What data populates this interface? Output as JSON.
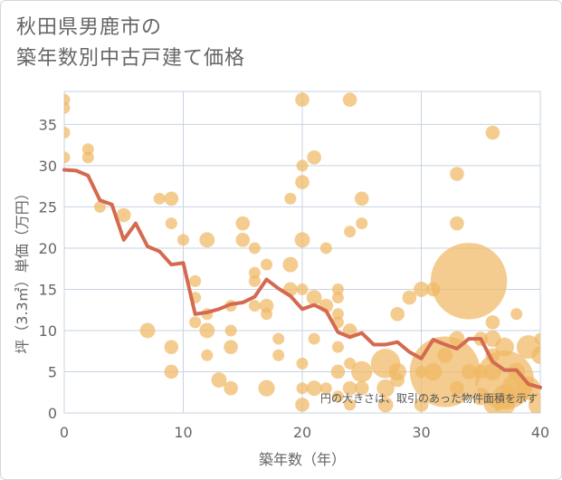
{
  "chart_data": {
    "type": "scatter",
    "title_lines": [
      "秋田県男鹿市の",
      "築年数別中古戸建て価格"
    ],
    "xlabel": "築年数（年）",
    "ylabel": "坪（3.3㎡）単価（万円）",
    "xlim": [
      0,
      40
    ],
    "ylim": [
      0,
      39
    ],
    "xticks": [
      0,
      10,
      20,
      30,
      40
    ],
    "yticks": [
      0,
      5,
      10,
      15,
      20,
      25,
      30,
      35
    ],
    "grid": true,
    "note": "円の大きさは、取引のあった物件面積を示す",
    "colors": {
      "bubble": "#f0b964",
      "line": "#d46a4f",
      "grid": "#c8d3e2",
      "plot_bg": "#ffffff"
    },
    "series": [
      {
        "type": "bubble",
        "points": [
          [
            0,
            38,
            1
          ],
          [
            0,
            37,
            1
          ],
          [
            0,
            34,
            1
          ],
          [
            0,
            31,
            1
          ],
          [
            2,
            32,
            1
          ],
          [
            2,
            31,
            1
          ],
          [
            3,
            25,
            1
          ],
          [
            5,
            24,
            1.2
          ],
          [
            7,
            10,
            1.3
          ],
          [
            8,
            26,
            1
          ],
          [
            9,
            26,
            1.2
          ],
          [
            9,
            23,
            1
          ],
          [
            9,
            8,
            1.2
          ],
          [
            9,
            5,
            1.2
          ],
          [
            10,
            21,
            1
          ],
          [
            11,
            16,
            1
          ],
          [
            11,
            14,
            1
          ],
          [
            11,
            11,
            1
          ],
          [
            12,
            21,
            1.3
          ],
          [
            12,
            12,
            1
          ],
          [
            12,
            10,
            1.3
          ],
          [
            12,
            7,
            1
          ],
          [
            13,
            4,
            1.3
          ],
          [
            14,
            13,
            1
          ],
          [
            14,
            10,
            1
          ],
          [
            14,
            8,
            1.2
          ],
          [
            14,
            3,
            1.2
          ],
          [
            15,
            23,
            1.2
          ],
          [
            15,
            21,
            1.2
          ],
          [
            16,
            20,
            1
          ],
          [
            16,
            17,
            1
          ],
          [
            16,
            16,
            1
          ],
          [
            16,
            13,
            1
          ],
          [
            17,
            18,
            1
          ],
          [
            17,
            13,
            1.2
          ],
          [
            17,
            12,
            1
          ],
          [
            17,
            3,
            1.4
          ],
          [
            18,
            9,
            1
          ],
          [
            18,
            7,
            1
          ],
          [
            19,
            26,
            1
          ],
          [
            19,
            18,
            1.3
          ],
          [
            19,
            15,
            1.2
          ],
          [
            20,
            38,
            1.2
          ],
          [
            20,
            30,
            1
          ],
          [
            20,
            28,
            1.2
          ],
          [
            20,
            21,
            1.3
          ],
          [
            20,
            15,
            1
          ],
          [
            20,
            6,
            1
          ],
          [
            20,
            3,
            1
          ],
          [
            20,
            1,
            1.2
          ],
          [
            21,
            31,
            1.2
          ],
          [
            21,
            14,
            1.3
          ],
          [
            21,
            9,
            1
          ],
          [
            21,
            3,
            1.3
          ],
          [
            22,
            20,
            1
          ],
          [
            22,
            13,
            1.2
          ],
          [
            22,
            3,
            1
          ],
          [
            23,
            15,
            1
          ],
          [
            23,
            14,
            1
          ],
          [
            23,
            12,
            1
          ],
          [
            23,
            11,
            1
          ],
          [
            23,
            8,
            1
          ],
          [
            23,
            5,
            1.2
          ],
          [
            23,
            2,
            1
          ],
          [
            24,
            38,
            1.2
          ],
          [
            24,
            22,
            1
          ],
          [
            24,
            10,
            1.2
          ],
          [
            24,
            6,
            1
          ],
          [
            24,
            3,
            1.2
          ],
          [
            24,
            1,
            1
          ],
          [
            25,
            26,
            1.2
          ],
          [
            25,
            23,
            1
          ],
          [
            25,
            5,
            1.8
          ],
          [
            25,
            3,
            1.2
          ],
          [
            27,
            6,
            2.5
          ],
          [
            27,
            3,
            1.5
          ],
          [
            27,
            1,
            1.3
          ],
          [
            28,
            12,
            1.2
          ],
          [
            28,
            5,
            1.5
          ],
          [
            28,
            4,
            1.2
          ],
          [
            29,
            14,
            1.2
          ],
          [
            30,
            15,
            1.3
          ],
          [
            30,
            5,
            1
          ],
          [
            30,
            1,
            1.2
          ],
          [
            31,
            15,
            1.2
          ],
          [
            31,
            5,
            1.5
          ],
          [
            32,
            7,
            1.3
          ],
          [
            32,
            5,
            6
          ],
          [
            33,
            29,
            1.2
          ],
          [
            33,
            23,
            1.2
          ],
          [
            33,
            9,
            1.3
          ],
          [
            33,
            3,
            1.2
          ],
          [
            34,
            16,
            6.5
          ],
          [
            34,
            5,
            1.3
          ],
          [
            35,
            9,
            1.2
          ],
          [
            35,
            5,
            1.2
          ],
          [
            35,
            2,
            1.5
          ],
          [
            36,
            34,
            1.2
          ],
          [
            36,
            11,
            1.2
          ],
          [
            36,
            9,
            1.4
          ],
          [
            36,
            7,
            1.2
          ],
          [
            36,
            5,
            1.5
          ],
          [
            36,
            1,
            1.5
          ],
          [
            37,
            8,
            1.6
          ],
          [
            37,
            4,
            5
          ],
          [
            37,
            2,
            2
          ],
          [
            37,
            1,
            1.8
          ],
          [
            38,
            12,
            1
          ],
          [
            38,
            5,
            1.5
          ],
          [
            38,
            3,
            2.5
          ],
          [
            39,
            8,
            2
          ],
          [
            39,
            3,
            2
          ],
          [
            40,
            9,
            1
          ],
          [
            40,
            7,
            1.5
          ],
          [
            40,
            1,
            2
          ]
        ]
      },
      {
        "type": "line",
        "x": [
          0,
          1,
          2,
          3,
          4,
          5,
          6,
          7,
          8,
          9,
          10,
          11,
          12,
          13,
          14,
          15,
          16,
          17,
          18,
          19,
          20,
          21,
          22,
          23,
          24,
          25,
          26,
          27,
          28,
          29,
          30,
          31,
          32,
          33,
          34,
          35,
          36,
          37,
          38,
          39,
          40
        ],
        "y": [
          29.5,
          29.4,
          28.8,
          25.8,
          25.3,
          21.0,
          23.0,
          20.2,
          19.6,
          18.0,
          18.2,
          12.0,
          12.2,
          12.6,
          13.2,
          13.4,
          14.1,
          16.2,
          15.1,
          14.2,
          12.6,
          13.1,
          12.4,
          9.8,
          9.2,
          9.7,
          8.3,
          8.3,
          8.6,
          7.4,
          6.6,
          8.9,
          8.3,
          7.8,
          9.0,
          9.0,
          6.2,
          5.2,
          5.2,
          3.5,
          3.1
        ]
      }
    ]
  }
}
